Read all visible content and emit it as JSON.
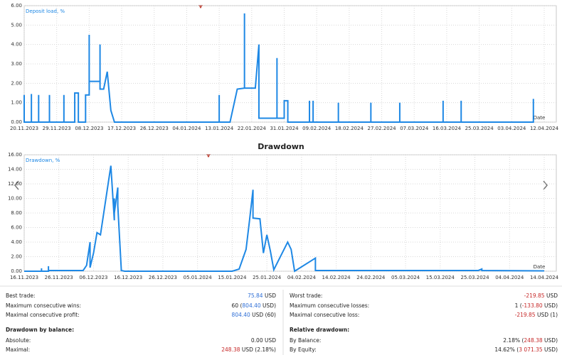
{
  "chart_data": [
    {
      "type": "line",
      "series": [
        {
          "name": "Deposit load, %",
          "color": "#1e88e5",
          "x": [
            "2023-11-20",
            "2023-11-20",
            "2023-11-20",
            "2023-11-20",
            "2023-11-22",
            "2023-11-22",
            "2023-11-22",
            "2023-11-24",
            "2023-11-24",
            "2023-11-24",
            "2023-11-27",
            "2023-11-27",
            "2023-11-27",
            "2023-12-01",
            "2023-12-01",
            "2023-12-01",
            "2023-12-04",
            "2023-12-04",
            "2023-12-05",
            "2023-12-05",
            "2023-12-07",
            "2023-12-07",
            "2023-12-08",
            "2023-12-08",
            "2023-12-08",
            "2023-12-11",
            "2023-12-11",
            "2023-12-11",
            "2023-12-12",
            "2023-12-13",
            "2023-12-13",
            "2023-12-14",
            "2023-12-14",
            "2023-12-15",
            "2024-01-13",
            "2024-01-13",
            "2024-01-13",
            "2024-01-16",
            "2024-01-18",
            "2024-01-20",
            "2024-01-20",
            "2024-01-20",
            "2024-01-23",
            "2024-01-24",
            "2024-01-24",
            "2024-01-29",
            "2024-01-29",
            "2024-01-29",
            "2024-01-31",
            "2024-01-31",
            "2024-02-01",
            "2024-02-01",
            "2024-02-07",
            "2024-02-07",
            "2024-02-07",
            "2024-02-08",
            "2024-02-08",
            "2024-02-08",
            "2024-02-15",
            "2024-02-15",
            "2024-02-15",
            "2024-02-24",
            "2024-02-24",
            "2024-02-24",
            "2024-03-03",
            "2024-03-03",
            "2024-03-03",
            "2024-03-15",
            "2024-03-15",
            "2024-03-15",
            "2024-03-20",
            "2024-03-20",
            "2024-03-20",
            "2024-04-09",
            "2024-04-09"
          ],
          "values": [
            0,
            1.4,
            0,
            0,
            0,
            1.45,
            0,
            0,
            1.4,
            0,
            0,
            1.4,
            0,
            0,
            1.4,
            0,
            0,
            1.5,
            1.5,
            0,
            0,
            1.4,
            1.4,
            4.5,
            2.1,
            2.1,
            4.0,
            1.7,
            1.7,
            2.6,
            2.6,
            0.6,
            0.6,
            0,
            0,
            1.4,
            0,
            0,
            1.7,
            1.75,
            5.6,
            1.75,
            1.75,
            4.0,
            0.2,
            0.2,
            3.3,
            0.2,
            0.2,
            1.1,
            1.1,
            0,
            0,
            1.1,
            0,
            0,
            1.1,
            0,
            0,
            1.0,
            0,
            0,
            1.0,
            0,
            0,
            1.0,
            0,
            0,
            1.1,
            0,
            0,
            1.1,
            0,
            0,
            1.2
          ]
        }
      ],
      "x_label": "Date",
      "xlim": [
        "2023-11-20",
        "2024-04-12"
      ],
      "xticks": [
        {
          "value": "2023-11-20",
          "label": "20.11.2023"
        },
        {
          "value": "2023-11-29",
          "label": "29.11.2023"
        },
        {
          "value": "2023-12-08",
          "label": "08.12.2023"
        },
        {
          "value": "2023-12-17",
          "label": "17.12.2023"
        },
        {
          "value": "2023-12-26",
          "label": "26.12.2023"
        },
        {
          "value": "2024-01-04",
          "label": "04.01.2024"
        },
        {
          "value": "2024-01-13",
          "label": "13.01.2024"
        },
        {
          "value": "2024-01-22",
          "label": "22.01.2024"
        },
        {
          "value": "2024-01-31",
          "label": "31.01.2024"
        },
        {
          "value": "2024-02-09",
          "label": "09.02.2024"
        },
        {
          "value": "2024-02-18",
          "label": "18.02.2024"
        },
        {
          "value": "2024-02-27",
          "label": "27.02.2024"
        },
        {
          "value": "2024-03-07",
          "label": "07.03.2024"
        },
        {
          "value": "2024-03-16",
          "label": "16.03.2024"
        },
        {
          "value": "2024-03-25",
          "label": "25.03.2024"
        },
        {
          "value": "2024-04-03",
          "label": "03.04.2024"
        },
        {
          "value": "2024-04-12",
          "label": "12.04.2024"
        }
      ],
      "ylim": [
        0,
        6
      ],
      "yticks": [
        {
          "value": 0,
          "label": "0.00"
        },
        {
          "value": 1,
          "label": "1.00"
        },
        {
          "value": 2,
          "label": "2.00"
        },
        {
          "value": 3,
          "label": "3.00"
        },
        {
          "value": 4,
          "label": "4.00"
        },
        {
          "value": 5,
          "label": "5.00"
        },
        {
          "value": 6,
          "label": "6.00"
        }
      ],
      "grid": true
    },
    {
      "type": "line",
      "title": "Drawdown",
      "series": [
        {
          "name": "Drawdown, %",
          "color": "#1e88e5",
          "x": [
            "2023-11-16",
            "2023-11-21",
            "2023-11-21",
            "2023-11-21",
            "2023-11-23",
            "2023-11-23",
            "2023-11-23",
            "2023-12-03",
            "2023-12-04",
            "2023-12-05",
            "2023-12-05",
            "2023-12-06",
            "2023-12-07",
            "2023-12-08",
            "2023-12-11",
            "2023-12-12",
            "2023-12-12",
            "2023-12-12",
            "2023-12-13",
            "2023-12-13",
            "2023-12-14",
            "2023-12-14",
            "2023-12-15",
            "2024-01-15",
            "2024-01-17",
            "2024-01-19",
            "2024-01-20",
            "2024-01-21",
            "2024-01-21",
            "2024-01-23",
            "2024-01-24",
            "2024-01-25",
            "2024-01-26",
            "2024-01-27",
            "2024-01-31",
            "2024-02-01",
            "2024-02-02",
            "2024-02-08",
            "2024-02-08",
            "2024-03-26",
            "2024-03-27",
            "2024-03-27",
            "2024-04-14"
          ],
          "values": [
            0,
            0,
            0.4,
            0,
            0,
            0.7,
            0.1,
            0.1,
            0.8,
            4.0,
            0.5,
            2.5,
            5.3,
            5.0,
            14.5,
            7.0,
            10.0,
            8.0,
            11.5,
            9.0,
            0.3,
            0.1,
            0,
            0,
            0.3,
            3.0,
            7.0,
            11.2,
            7.3,
            7.2,
            2.5,
            5.0,
            2.8,
            0.2,
            4.0,
            3.0,
            0,
            1.8,
            0.1,
            0.1,
            0.3,
            0.1,
            0.05
          ]
        }
      ],
      "x_label": "Date",
      "xlim": [
        "2023-11-16",
        "2024-04-14"
      ],
      "xticks": [
        {
          "value": "2023-11-16",
          "label": "16.11.2023"
        },
        {
          "value": "2023-11-26",
          "label": "26.11.2023"
        },
        {
          "value": "2023-12-06",
          "label": "06.12.2023"
        },
        {
          "value": "2023-12-16",
          "label": "16.12.2023"
        },
        {
          "value": "2023-12-26",
          "label": "26.12.2023"
        },
        {
          "value": "2024-01-05",
          "label": "05.01.2024"
        },
        {
          "value": "2024-01-15",
          "label": "15.01.2024"
        },
        {
          "value": "2024-01-25",
          "label": "25.01.2024"
        },
        {
          "value": "2024-02-04",
          "label": "04.02.2024"
        },
        {
          "value": "2024-02-14",
          "label": "14.02.2024"
        },
        {
          "value": "2024-02-24",
          "label": "24.02.2024"
        },
        {
          "value": "2024-03-05",
          "label": "05.03.2024"
        },
        {
          "value": "2024-03-15",
          "label": "15.03.2024"
        },
        {
          "value": "2024-03-25",
          "label": "25.03.2024"
        },
        {
          "value": "2024-04-04",
          "label": "04.04.2024"
        },
        {
          "value": "2024-04-14",
          "label": "14.04.2024"
        }
      ],
      "ylim": [
        0,
        16
      ],
      "yticks": [
        {
          "value": 0,
          "label": "0.00"
        },
        {
          "value": 2,
          "label": "2.00"
        },
        {
          "value": 4,
          "label": "4.00"
        },
        {
          "value": 6,
          "label": "6.00"
        },
        {
          "value": 8,
          "label": "8.00"
        },
        {
          "value": 10,
          "label": "10.00"
        },
        {
          "value": 12,
          "label": "12.00"
        },
        {
          "value": 14,
          "label": "14.00"
        },
        {
          "value": 16,
          "label": "16.00"
        }
      ],
      "grid": true
    }
  ],
  "stats": {
    "colors": {
      "profit": "#2f6fd6",
      "loss": "#c62828"
    },
    "left": [
      {
        "label": "Best trade:",
        "parts": [
          "75.84",
          " USD"
        ],
        "accent": 0,
        "tone": "profit"
      },
      {
        "label": "Maximum consecutive wins:",
        "parts": [
          "60 (",
          "804.40",
          " USD)"
        ],
        "accent": 1,
        "tone": "profit"
      },
      {
        "label": "Maximal consecutive profit:",
        "parts": [
          "804.40",
          " USD (60)"
        ],
        "accent": 0,
        "tone": "profit"
      },
      {
        "heading": "Drawdown by balance:"
      },
      {
        "label": "Absolute:",
        "parts": [
          "0.00 USD"
        ]
      },
      {
        "label": "Maximal:",
        "parts": [
          "248.38",
          " USD (2.18%)"
        ],
        "accent": 0,
        "tone": "loss"
      }
    ],
    "right": [
      {
        "label": "Worst trade:",
        "parts": [
          "-219.85",
          " USD"
        ],
        "accent": 0,
        "tone": "loss"
      },
      {
        "label": "Maximum consecutive losses:",
        "parts": [
          "1 (",
          "-133.80",
          " USD)"
        ],
        "accent": 1,
        "tone": "loss"
      },
      {
        "label": "Maximal consecutive loss:",
        "parts": [
          "-219.85",
          " USD (1)"
        ],
        "accent": 0,
        "tone": "loss"
      },
      {
        "heading": "Relative drawdown:"
      },
      {
        "label": "By Balance:",
        "parts": [
          "2.18% (",
          "248.38",
          " USD)"
        ],
        "accent": 1,
        "tone": "loss"
      },
      {
        "label": "By Equity:",
        "parts": [
          "14.62% (",
          "3 071.35",
          " USD)"
        ],
        "accent": 1,
        "tone": "loss"
      }
    ]
  }
}
